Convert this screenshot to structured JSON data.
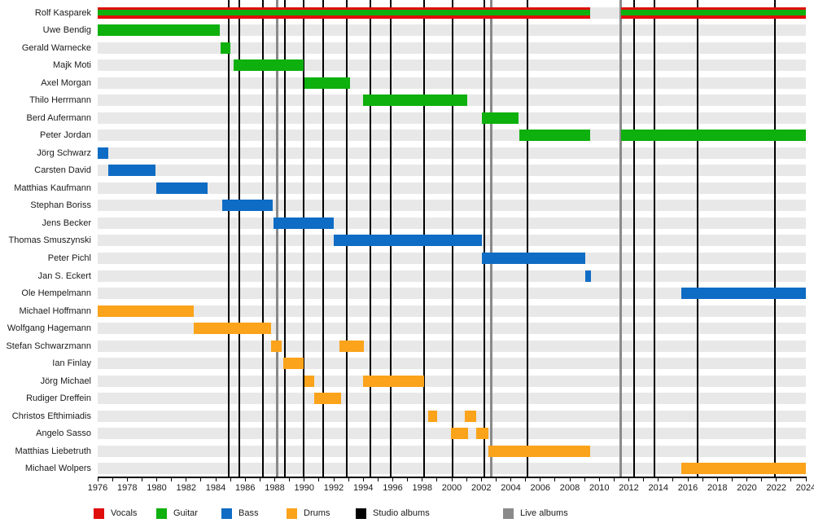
{
  "chart_data": {
    "type": "timeline",
    "description": "Band members timeline (gantt-style) with album release markers",
    "x_axis": {
      "min": 1976,
      "max": 2024,
      "label_step": 2,
      "minor_tick_step": 1,
      "tick_labels": [
        "1976",
        "1978",
        "1980",
        "1982",
        "1984",
        "1986",
        "1988",
        "1990",
        "1992",
        "1994",
        "1996",
        "1998",
        "2000",
        "2002",
        "2004",
        "2006",
        "2008",
        "2010",
        "2012",
        "2014",
        "2016",
        "2018",
        "2020",
        "2022",
        "2024"
      ]
    },
    "colors": {
      "vocals": "#e00d0d",
      "guitar": "#0db00d",
      "bass": "#0f6cc4",
      "drums": "#faa31b",
      "studio_album": "#000000",
      "live_album": "#8a8a8a",
      "row_band": "#e8e8e8"
    },
    "members": [
      {
        "name": "Rolf Kasparek",
        "role": "vocals+guitar",
        "segments": [
          [
            1976.0,
            2009.38
          ],
          [
            2011.47,
            2024.0
          ]
        ]
      },
      {
        "name": "Uwe Bendig",
        "role": "guitar",
        "segments": [
          [
            1976.0,
            1984.28
          ]
        ]
      },
      {
        "name": "Gerald Warnecke",
        "role": "guitar",
        "segments": [
          [
            1984.33,
            1985.0
          ]
        ]
      },
      {
        "name": "Majk Moti",
        "role": "guitar",
        "segments": [
          [
            1985.21,
            1989.96
          ]
        ]
      },
      {
        "name": "Axel Morgan",
        "role": "guitar",
        "segments": [
          [
            1990.02,
            1993.1
          ]
        ]
      },
      {
        "name": "Thilo Herrmann",
        "role": "guitar",
        "segments": [
          [
            1993.98,
            2001.05
          ]
        ]
      },
      {
        "name": "Berd Aufermann",
        "role": "guitar",
        "segments": [
          [
            2002.03,
            2004.52
          ]
        ]
      },
      {
        "name": "Peter Jordan",
        "role": "guitar",
        "segments": [
          [
            2004.58,
            2009.38
          ],
          [
            2011.47,
            2024.0
          ]
        ]
      },
      {
        "name": "Jörg Schwarz",
        "role": "bass",
        "segments": [
          [
            1976.0,
            1976.72
          ]
        ]
      },
      {
        "name": "Carsten David",
        "role": "bass",
        "segments": [
          [
            1976.72,
            1979.92
          ]
        ]
      },
      {
        "name": "Matthias Kaufmann",
        "role": "bass",
        "segments": [
          [
            1979.97,
            1983.45
          ]
        ]
      },
      {
        "name": "Stephan Boriss",
        "role": "bass",
        "segments": [
          [
            1984.44,
            1987.86
          ]
        ]
      },
      {
        "name": "Jens Becker",
        "role": "bass",
        "segments": [
          [
            1987.92,
            1992.0
          ]
        ]
      },
      {
        "name": "Thomas Smuszynski",
        "role": "bass",
        "segments": [
          [
            1992.0,
            2002.03
          ]
        ]
      },
      {
        "name": "Peter Pichl",
        "role": "bass",
        "segments": [
          [
            2002.03,
            2009.05
          ]
        ]
      },
      {
        "name": "Jan S. Eckert",
        "role": "bass",
        "segments": [
          [
            2009.05,
            2009.43
          ]
        ]
      },
      {
        "name": "Ole Hempelmann",
        "role": "bass",
        "segments": [
          [
            2015.57,
            2024.0
          ]
        ]
      },
      {
        "name": "Michael Hoffmann",
        "role": "drums",
        "segments": [
          [
            1976.0,
            1982.51
          ]
        ]
      },
      {
        "name": "Wolfgang Hagemann",
        "role": "drums",
        "segments": [
          [
            1982.51,
            1987.75
          ]
        ]
      },
      {
        "name": "Stefan Schwarzmann",
        "role": "drums",
        "segments": [
          [
            1987.75,
            1988.47
          ],
          [
            1992.39,
            1994.04
          ]
        ]
      },
      {
        "name": "Ian Finlay",
        "role": "drums",
        "segments": [
          [
            1988.58,
            1989.96
          ]
        ]
      },
      {
        "name": "Jörg Michael",
        "role": "drums",
        "segments": [
          [
            1990.02,
            1990.68
          ],
          [
            1993.98,
            1998.12
          ]
        ]
      },
      {
        "name": "Rudiger Dreffein",
        "role": "drums",
        "segments": [
          [
            1990.68,
            1992.5
          ]
        ]
      },
      {
        "name": "Christos Efthimiadis",
        "role": "drums",
        "segments": [
          [
            1998.4,
            1998.98
          ],
          [
            2000.88,
            2001.66
          ]
        ]
      },
      {
        "name": "Angelo Sasso",
        "role": "drums",
        "segments": [
          [
            1999.97,
            2001.08
          ],
          [
            2001.66,
            2002.48
          ]
        ]
      },
      {
        "name": "Matthias Liebetruth",
        "role": "drums",
        "segments": [
          [
            2002.48,
            2009.38
          ]
        ]
      },
      {
        "name": "Michael Wolpers",
        "role": "drums",
        "segments": [
          [
            2015.57,
            2024.0
          ]
        ]
      }
    ],
    "studio_album_lines_years": [
      1984.88,
      1985.6,
      1987.2,
      1988.69,
      1989.96,
      1991.28,
      1992.88,
      1994.48,
      1995.86,
      1998.12,
      2000.05,
      2002.2,
      2005.13,
      2012.36,
      2013.74,
      2016.66,
      2021.9
    ],
    "live_album_lines_years": [
      1988.14,
      2002.7,
      2011.47
    ],
    "legend": [
      {
        "label": "Vocals",
        "color": "#e00d0d"
      },
      {
        "label": "Guitar",
        "color": "#0db00d"
      },
      {
        "label": "Bass",
        "color": "#0f6cc4"
      },
      {
        "label": "Drums",
        "color": "#faa31b"
      },
      {
        "label": "Studio albums",
        "color": "#000000"
      },
      {
        "label": "Live albums",
        "color": "#8a8a8a"
      }
    ]
  }
}
